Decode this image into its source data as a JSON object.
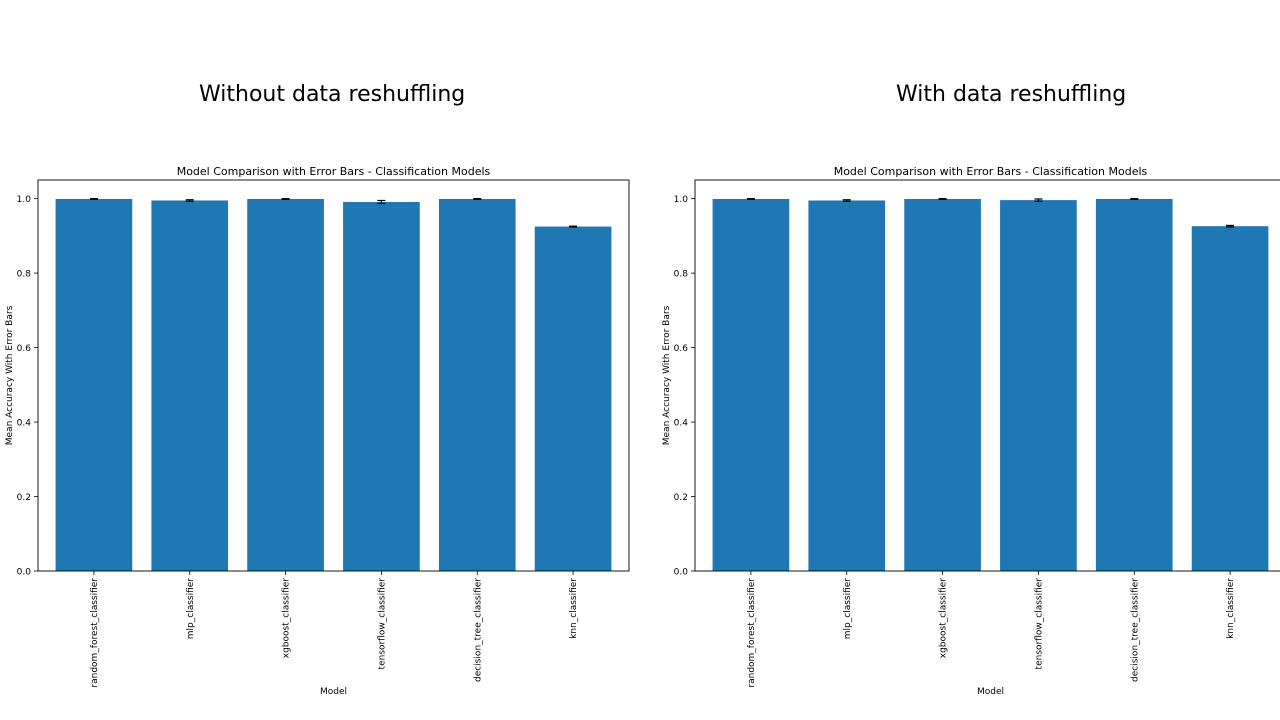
{
  "slide": {
    "left_heading": "Without data reshuffling",
    "right_heading": "With data reshuffling"
  },
  "chart_data": [
    {
      "type": "bar",
      "title": "Model Comparison with Error Bars - Classification Models",
      "xlabel": "Model",
      "ylabel": "Mean Accuracy With Error Bars",
      "ylim": [
        0,
        1.05
      ],
      "yticks": [
        0.0,
        0.2,
        0.4,
        0.6,
        0.8,
        1.0
      ],
      "ytick_labels": [
        "0.0",
        "0.2",
        "0.4",
        "0.6",
        "0.8",
        "1.0"
      ],
      "categories": [
        "random_forest_classifier",
        "mlp_classifier",
        "xgboost_classifier",
        "tensorflow_classifier",
        "decision_tree_classifier",
        "knn_classifier"
      ],
      "values": [
        0.999,
        0.995,
        0.999,
        0.991,
        0.999,
        0.925
      ],
      "errors": [
        0.001,
        0.002,
        0.001,
        0.004,
        0.001,
        0.001
      ],
      "bar_color": "#1f77b4",
      "grid": false
    },
    {
      "type": "bar",
      "title": "Model Comparison with Error Bars - Classification Models",
      "xlabel": "Model",
      "ylabel": "Mean Accuracy With Error Bars",
      "ylim": [
        0,
        1.05
      ],
      "yticks": [
        0.0,
        0.2,
        0.4,
        0.6,
        0.8,
        1.0
      ],
      "ytick_labels": [
        "0.0",
        "0.2",
        "0.4",
        "0.6",
        "0.8",
        "1.0"
      ],
      "categories": [
        "random_forest_classifier",
        "mlp_classifier",
        "xgboost_classifier",
        "tensorflow_classifier",
        "decision_tree_classifier",
        "knn_classifier"
      ],
      "values": [
        0.999,
        0.995,
        0.999,
        0.996,
        0.999,
        0.926
      ],
      "errors": [
        0.001,
        0.002,
        0.001,
        0.003,
        0.001,
        0.002
      ],
      "bar_color": "#1f77b4",
      "grid": false
    }
  ]
}
